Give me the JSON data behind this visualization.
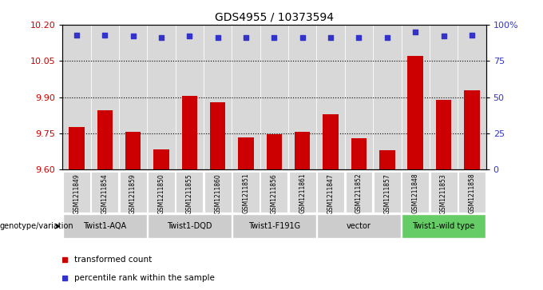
{
  "title": "GDS4955 / 10373594",
  "samples": [
    "GSM1211849",
    "GSM1211854",
    "GSM1211859",
    "GSM1211850",
    "GSM1211855",
    "GSM1211860",
    "GSM1211851",
    "GSM1211856",
    "GSM1211861",
    "GSM1211847",
    "GSM1211852",
    "GSM1211857",
    "GSM1211848",
    "GSM1211853",
    "GSM1211858"
  ],
  "bar_values": [
    9.775,
    9.845,
    9.755,
    9.685,
    9.905,
    9.88,
    9.735,
    9.745,
    9.755,
    9.83,
    9.73,
    9.68,
    10.07,
    9.89,
    9.93
  ],
  "percentile_values": [
    93,
    93,
    92,
    91,
    92,
    91,
    91,
    91,
    91,
    91,
    91,
    91,
    95,
    92,
    93
  ],
  "ylim_left": [
    9.6,
    10.2
  ],
  "ylim_right": [
    0,
    100
  ],
  "yticks_left": [
    9.6,
    9.75,
    9.9,
    10.05,
    10.2
  ],
  "yticks_right": [
    0,
    25,
    50,
    75,
    100
  ],
  "ytick_labels_right": [
    "0",
    "25",
    "50",
    "75",
    "100%"
  ],
  "bar_color": "#cc0000",
  "percentile_color": "#3333cc",
  "groups": [
    {
      "label": "Twist1-AQA",
      "indices": [
        0,
        1,
        2
      ]
    },
    {
      "label": "Twist1-DQD",
      "indices": [
        3,
        4,
        5
      ]
    },
    {
      "label": "Twist1-F191G",
      "indices": [
        6,
        7,
        8
      ]
    },
    {
      "label": "vector",
      "indices": [
        9,
        10,
        11
      ]
    },
    {
      "label": "Twist1-wild type",
      "indices": [
        12,
        13,
        14
      ]
    }
  ],
  "group_color_normal": "#cccccc",
  "group_color_wildtype": "#66cc66",
  "legend_items": [
    {
      "label": "transformed count",
      "color": "#cc0000"
    },
    {
      "label": "percentile rank within the sample",
      "color": "#3333cc"
    }
  ],
  "xlabel_genotype": "genotype/variation",
  "background_color": "#ffffff",
  "col_bg_color": "#d8d8d8",
  "tick_label_color_left": "#cc0000",
  "tick_label_color_right": "#3333cc",
  "grid_color": "#000000",
  "dotted_lines": [
    9.75,
    9.9,
    10.05
  ],
  "bar_width": 0.55
}
